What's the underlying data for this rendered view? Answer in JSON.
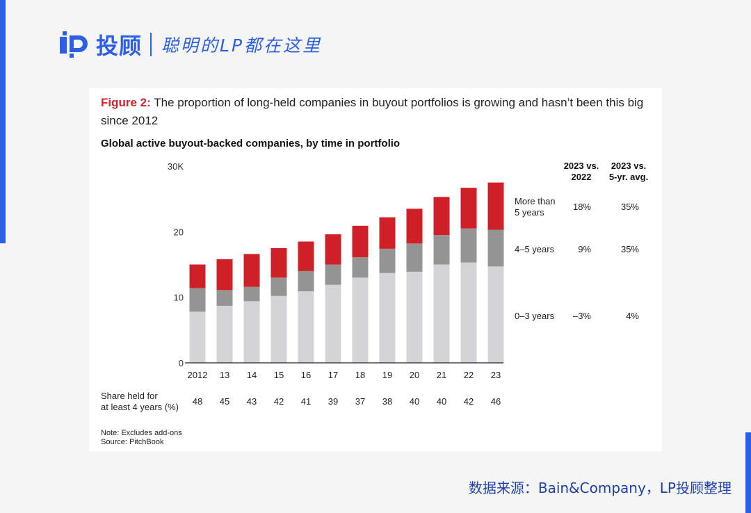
{
  "brand": {
    "name": "投顾",
    "slogan": "聪明的LP都在这里",
    "color": "#2c5fe6"
  },
  "figure": {
    "label": "Figure 2:",
    "title": " The proportion of long-held companies in buyout portfolios is growing and hasn’t been this big since 2012",
    "subtitle": "Global active buyout-backed companies, by time in portfolio",
    "notes": [
      "Note: Excludes add-ons",
      "Source: PitchBook"
    ]
  },
  "chart_data": {
    "type": "bar",
    "stacked": true,
    "title": "Global active buyout-backed companies, by time in portfolio",
    "categories": [
      "2012",
      "13",
      "14",
      "15",
      "16",
      "17",
      "18",
      "19",
      "20",
      "21",
      "22",
      "23"
    ],
    "series": [
      {
        "name": "0–3 years",
        "color": "#d4d4d6",
        "values": [
          7.8,
          8.7,
          9.4,
          10.2,
          10.9,
          11.9,
          13.0,
          13.7,
          13.9,
          15.0,
          15.3,
          14.7
        ]
      },
      {
        "name": "4–5 years",
        "color": "#949494",
        "values": [
          3.6,
          2.4,
          2.2,
          2.8,
          3.1,
          3.1,
          3.1,
          3.7,
          4.3,
          4.5,
          5.2,
          5.6
        ]
      },
      {
        "name": "More than 5 years",
        "color": "#cf2027",
        "values": [
          3.6,
          4.7,
          5.0,
          4.5,
          4.5,
          4.6,
          4.8,
          4.8,
          5.3,
          5.8,
          6.2,
          7.2
        ]
      }
    ],
    "y_ticks": [
      "0",
      "10",
      "20",
      "30K"
    ],
    "y_tick_values": [
      0,
      10,
      20,
      30
    ],
    "ylim": [
      0,
      30
    ],
    "legend_header": [
      "2023 vs.",
      "2022",
      "2023 vs.",
      "5-yr. avg."
    ],
    "legend_rows": [
      {
        "label_lines": [
          "More than",
          "5 years"
        ],
        "vs_2022": "18%",
        "vs_5yr": "35%"
      },
      {
        "label_lines": [
          "4–5 years"
        ],
        "vs_2022": "9%",
        "vs_5yr": "35%"
      },
      {
        "label_lines": [
          "0–3 years"
        ],
        "vs_2022": "–3%",
        "vs_5yr": "4%"
      }
    ],
    "share_label": [
      "Share held for",
      "at least 4 years (%)"
    ],
    "share_values": [
      "48",
      "45",
      "43",
      "42",
      "41",
      "39",
      "37",
      "38",
      "40",
      "40",
      "42",
      "46"
    ]
  },
  "footer": {
    "source": "数据来源：Bain&Company，LP投顾整理"
  }
}
